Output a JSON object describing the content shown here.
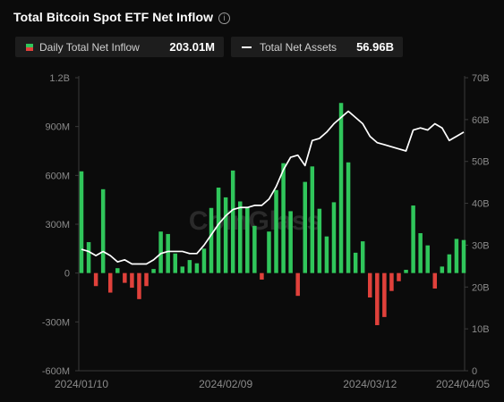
{
  "header": {
    "title": "Total Bitcoin Spot ETF Net Inflow",
    "info_icon": "info-icon"
  },
  "legend": [
    {
      "label": "Daily Total Net Inflow",
      "value": "203.01M",
      "icon": "bar-swatch",
      "colors": [
        "#30c65b",
        "#e0413b"
      ]
    },
    {
      "label": "Total Net Assets",
      "value": "56.96B",
      "icon": "line-swatch",
      "color": "#ffffff"
    }
  ],
  "watermark": "CoinGlass",
  "chart_data": {
    "type": "bar",
    "colors": {
      "positive": "#30c65b",
      "negative": "#e0413b",
      "line": "#ffffff"
    },
    "grid": false,
    "left_axis": {
      "ticks": [
        "1.2B",
        "900M",
        "600M",
        "300M",
        "0",
        "-300M",
        "-600M"
      ],
      "range_millions": [
        -600,
        1200
      ]
    },
    "right_axis": {
      "ticks": [
        "70B",
        "60B",
        "50B",
        "40B",
        "30B",
        "20B",
        "10B",
        "0"
      ],
      "range_billions": [
        0,
        70
      ]
    },
    "x_tick_labels": [
      "2024/01/10",
      "2024/02/09",
      "2024/03/12",
      "2024/04/05"
    ],
    "series": [
      {
        "name": "Daily Total Net Inflow",
        "unit": "M",
        "values": [
          625,
          190,
          -80,
          515,
          -120,
          30,
          -60,
          -90,
          -160,
          -80,
          25,
          255,
          240,
          120,
          40,
          80,
          60,
          150,
          400,
          525,
          465,
          630,
          440,
          405,
          290,
          -40,
          255,
          510,
          675,
          380,
          -140,
          560,
          655,
          395,
          225,
          435,
          1045,
          680,
          125,
          195,
          -150,
          -320,
          -270,
          -110,
          -50,
          20,
          415,
          245,
          170,
          -95,
          40,
          115,
          210,
          203
        ]
      },
      {
        "name": "Total Net Assets",
        "unit": "B",
        "values": [
          29,
          28.5,
          27.5,
          28.5,
          27.5,
          26,
          26.5,
          25.5,
          25.5,
          25.5,
          26.5,
          28,
          28.5,
          28.5,
          28.5,
          28,
          28,
          30,
          32.5,
          35,
          37,
          38.5,
          39,
          39,
          39.5,
          39.5,
          41,
          44,
          48,
          51,
          51.5,
          49,
          55,
          55.5,
          57,
          59,
          60.5,
          62,
          60.5,
          59,
          56,
          54.5,
          54,
          53.5,
          53,
          52.5,
          57.5,
          58,
          57.5,
          59,
          58,
          55,
          56,
          57
        ]
      }
    ]
  }
}
